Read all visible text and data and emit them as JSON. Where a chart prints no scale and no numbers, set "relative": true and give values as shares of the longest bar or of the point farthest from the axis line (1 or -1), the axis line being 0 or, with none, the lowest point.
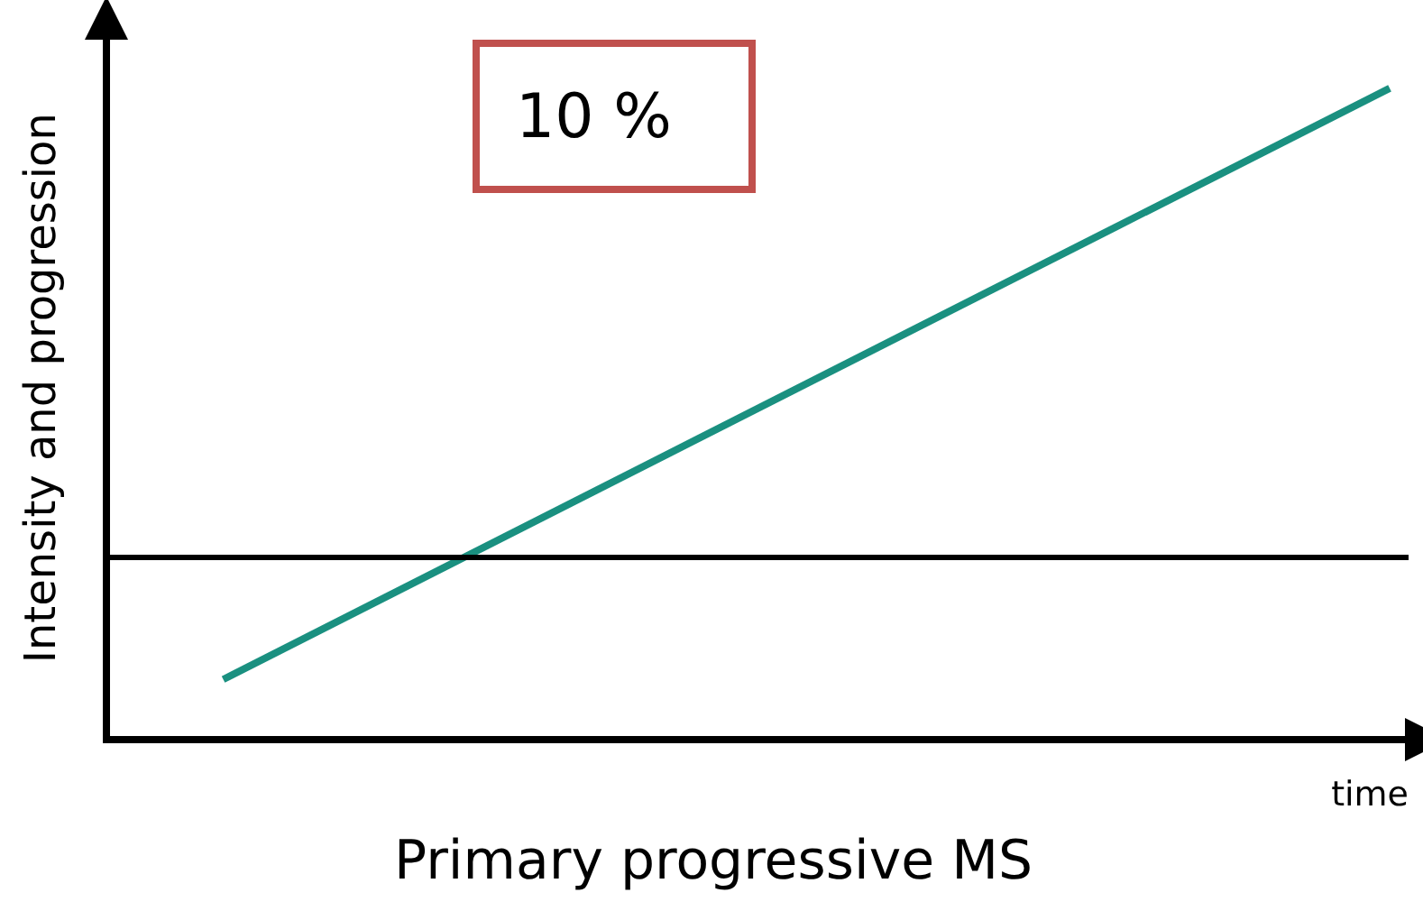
{
  "chart_data": {
    "type": "line",
    "title": "Primary progressive MS",
    "xlabel": "time",
    "ylabel": "Intensity and progression",
    "categories": [
      null,
      null
    ],
    "series": [
      {
        "color": "#1a9080",
        "values": [
          0.093,
          1
        ]
      }
    ],
    "relative": true,
    "ref_lines": [
      {
        "axis": "y",
        "value": 0.28,
        "color": "#000000"
      }
    ],
    "annotations": [
      "10 %"
    ],
    "grid": false,
    "legend": false,
    "marker": "none",
    "line_style": "solid"
  }
}
